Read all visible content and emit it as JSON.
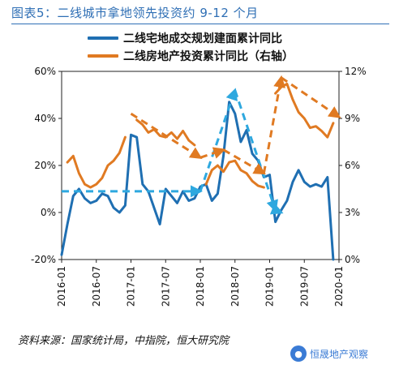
{
  "title": "图表5：二线城市拿地领先投资约 9-12 个月",
  "source": "资料来源：国家统计局，中指院，恒大研究院",
  "watermark": {
    "text": "恒晟地产观察",
    "icon": "wechat-logo-icon"
  },
  "chart_data": {
    "type": "line",
    "x_ticks": [
      "2016-01",
      "2016-07",
      "2017-01",
      "2017-07",
      "2018-01",
      "2018-07",
      "2019-01",
      "2019-07",
      "2020-01"
    ],
    "y_left": {
      "ticks": [
        "-20%",
        "0%",
        "20%",
        "40%",
        "60%"
      ],
      "min": -20,
      "max": 60
    },
    "y_right": {
      "ticks": [
        "0%",
        "3%",
        "6%",
        "9%",
        "12%"
      ],
      "min": 0,
      "max": 12
    },
    "series": [
      {
        "name": "二线宅地成交规划建面累计同比",
        "axis": "left",
        "color": "#1f6fb2",
        "points": [
          [
            "2016-01",
            -18
          ],
          [
            "2016-02",
            -5
          ],
          [
            "2016-03",
            7
          ],
          [
            "2016-04",
            10
          ],
          [
            "2016-05",
            6
          ],
          [
            "2016-06",
            4
          ],
          [
            "2016-07",
            5
          ],
          [
            "2016-08",
            8
          ],
          [
            "2016-09",
            7
          ],
          [
            "2016-10",
            2
          ],
          [
            "2016-11",
            0
          ],
          [
            "2016-12",
            3
          ],
          [
            "2017-01",
            33
          ],
          [
            "2017-02",
            32
          ],
          [
            "2017-03",
            12
          ],
          [
            "2017-04",
            9
          ],
          [
            "2017-05",
            2
          ],
          [
            "2017-06",
            -5
          ],
          [
            "2017-07",
            10
          ],
          [
            "2017-08",
            7
          ],
          [
            "2017-09",
            4
          ],
          [
            "2017-10",
            9
          ],
          [
            "2017-11",
            5
          ],
          [
            "2017-12",
            6
          ],
          [
            "2018-01",
            11
          ],
          [
            "2018-02",
            12
          ],
          [
            "2018-03",
            5
          ],
          [
            "2018-04",
            8
          ],
          [
            "2018-05",
            24
          ],
          [
            "2018-06",
            47
          ],
          [
            "2018-07",
            42
          ],
          [
            "2018-08",
            30
          ],
          [
            "2018-09",
            35
          ],
          [
            "2018-10",
            25
          ],
          [
            "2018-11",
            22
          ],
          [
            "2018-12",
            15
          ],
          [
            "2019-01",
            16
          ],
          [
            "2019-02",
            -4
          ],
          [
            "2019-03",
            1
          ],
          [
            "2019-04",
            5
          ],
          [
            "2019-05",
            13
          ],
          [
            "2019-06",
            18
          ],
          [
            "2019-07",
            13
          ],
          [
            "2019-08",
            11
          ],
          [
            "2019-09",
            12
          ],
          [
            "2019-10",
            11
          ],
          [
            "2019-11",
            15
          ],
          [
            "2019-12",
            -20
          ]
        ]
      },
      {
        "name": "二线房地产投资累计同比（右轴）",
        "axis": "right",
        "color": "#e07a22",
        "points": [
          [
            "2016-02",
            6.2
          ],
          [
            "2016-03",
            6.6
          ],
          [
            "2016-04",
            5.5
          ],
          [
            "2016-05",
            4.8
          ],
          [
            "2016-06",
            4.6
          ],
          [
            "2016-07",
            4.8
          ],
          [
            "2016-08",
            5.2
          ],
          [
            "2016-09",
            6.0
          ],
          [
            "2016-10",
            6.3
          ],
          [
            "2016-11",
            6.8
          ],
          [
            "2016-12",
            7.8
          ],
          [
            "2017-02",
            8.9
          ],
          [
            "2017-03",
            8.6
          ],
          [
            "2017-04",
            8.1
          ],
          [
            "2017-05",
            8.3
          ],
          [
            "2017-06",
            7.9
          ],
          [
            "2017-07",
            7.8
          ],
          [
            "2017-08",
            8.1
          ],
          [
            "2017-09",
            7.7
          ],
          [
            "2017-10",
            8.2
          ],
          [
            "2017-11",
            7.6
          ],
          [
            "2017-12",
            7.3
          ],
          [
            "2018-02",
            4.8
          ],
          [
            "2018-03",
            5.7
          ],
          [
            "2018-04",
            6.0
          ],
          [
            "2018-05",
            5.6
          ],
          [
            "2018-06",
            6.2
          ],
          [
            "2018-07",
            6.3
          ],
          [
            "2018-08",
            5.7
          ],
          [
            "2018-09",
            5.5
          ],
          [
            "2018-10",
            5.0
          ],
          [
            "2018-11",
            4.7
          ],
          [
            "2018-12",
            4.6
          ],
          [
            "2019-02",
            10.6
          ],
          [
            "2019-03",
            11.0
          ],
          [
            "2019-04",
            11.2
          ],
          [
            "2019-05",
            10.2
          ],
          [
            "2019-06",
            9.4
          ],
          [
            "2019-07",
            9.0
          ],
          [
            "2019-08",
            8.4
          ],
          [
            "2019-09",
            8.5
          ],
          [
            "2019-10",
            8.2
          ],
          [
            "2019-11",
            7.8
          ],
          [
            "2019-12",
            8.7
          ]
        ]
      }
    ],
    "annotations": [
      {
        "type": "dashed-arrow",
        "color": "#2ea8df",
        "axis": "left",
        "from": [
          "2016-01",
          9
        ],
        "to": [
          "2018-01",
          9
        ]
      },
      {
        "type": "dashed-arrow",
        "color": "#2ea8df",
        "axis": "left",
        "from": [
          "2018-01",
          9
        ],
        "to": [
          "2018-07",
          52
        ]
      },
      {
        "type": "dashed-arrow",
        "color": "#2ea8df",
        "axis": "left",
        "from": [
          "2018-07",
          52
        ],
        "to": [
          "2019-02",
          1
        ]
      },
      {
        "type": "dashed-arrow",
        "color": "#2ea8df",
        "axis": "left",
        "from": [
          "2019-02",
          1
        ],
        "to": [
          "2019-03",
          0
        ]
      },
      {
        "type": "dashed-arrow",
        "color": "#e07a22",
        "axis": "right",
        "from": [
          "2017-01",
          9.3
        ],
        "to": [
          "2018-01",
          6.5
        ]
      },
      {
        "type": "dashed-arrow",
        "color": "#e07a22",
        "axis": "right",
        "from": [
          "2018-01",
          6.5
        ],
        "to": [
          "2018-05",
          7.0
        ]
      },
      {
        "type": "dashed-arrow",
        "color": "#e07a22",
        "axis": "right",
        "from": [
          "2018-05",
          7.0
        ],
        "to": [
          "2018-12",
          5.5
        ]
      },
      {
        "type": "dashed-arrow",
        "color": "#e07a22",
        "axis": "right",
        "from": [
          "2018-12",
          5.5
        ],
        "to": [
          "2019-03",
          11.6
        ]
      },
      {
        "type": "dashed-arrow",
        "color": "#e07a22",
        "axis": "right",
        "from": [
          "2019-03",
          11.6
        ],
        "to": [
          "2020-01",
          9.1
        ]
      }
    ]
  }
}
